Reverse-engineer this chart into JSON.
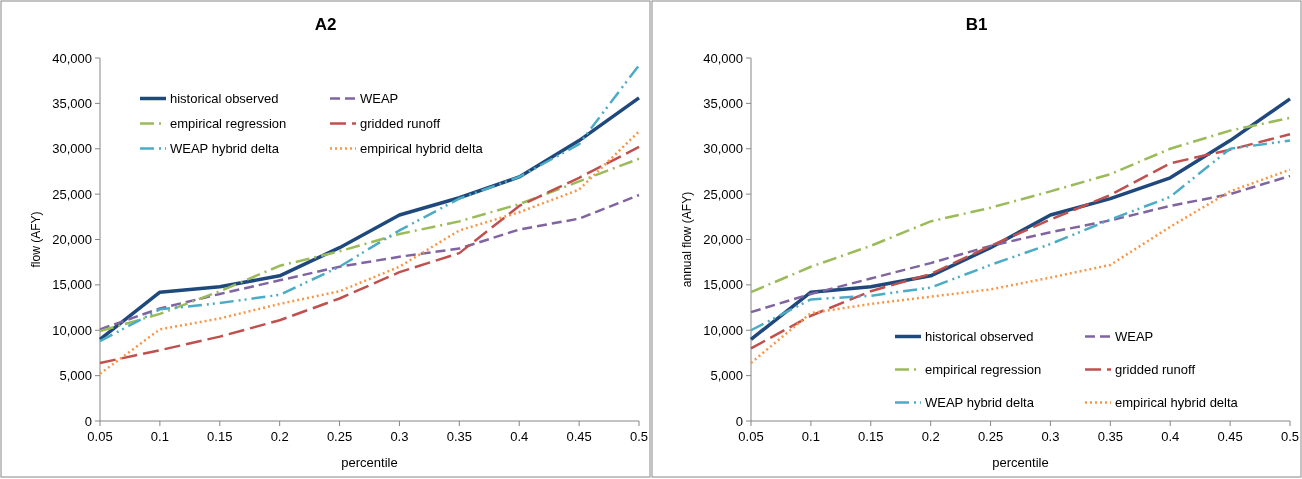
{
  "chart_data": [
    {
      "type": "line",
      "title": "A2",
      "xlabel": "percentile",
      "ylabel": "flow (AFY)",
      "x": [
        0.05,
        0.1,
        0.15,
        0.2,
        0.25,
        0.3,
        0.35,
        0.4,
        0.45,
        0.5
      ],
      "xlim": [
        0.05,
        0.5
      ],
      "xticks": [
        0.05,
        0.1,
        0.15,
        0.2,
        0.25,
        0.3,
        0.35,
        0.4,
        0.45,
        0.5
      ],
      "ylim": [
        0,
        40000
      ],
      "yticks": [
        0,
        {
          "value": 5000,
          "label": "5,000"
        },
        {
          "value": 10000,
          "label": "10,000"
        },
        {
          "value": 15000,
          "label": "15,000"
        },
        {
          "value": 20000,
          "label": "20,000"
        },
        {
          "value": 25000,
          "label": "25,000"
        },
        {
          "value": 30000,
          "label": "30,000"
        },
        {
          "value": 35000,
          "label": "35,000"
        },
        {
          "value": 40000,
          "label": "40,000"
        }
      ],
      "grid": false,
      "legend": "top left",
      "marker": "none",
      "series": [
        {
          "name": "historical observed",
          "color": "#1f497d",
          "line_style": "solid",
          "values": [
            9000,
            14200,
            14800,
            16000,
            19100,
            22700,
            24600,
            26900,
            30900,
            35600
          ]
        },
        {
          "name": "WEAP",
          "color": "#8064a2",
          "line_style": "dashed",
          "values": [
            10100,
            12400,
            14000,
            15500,
            17000,
            18100,
            19000,
            21100,
            22300,
            24900
          ]
        },
        {
          "name": "empirical regression",
          "color": "#9bbb59",
          "line_style": "dashed",
          "values": [
            9900,
            11800,
            14300,
            17100,
            18700,
            20600,
            22000,
            23900,
            26400,
            28900
          ]
        },
        {
          "name": "gridded runoff",
          "color": "#c0504d",
          "line_style": "dashed",
          "values": [
            6400,
            7800,
            9300,
            11100,
            13500,
            16400,
            18500,
            23700,
            26800,
            30200
          ]
        },
        {
          "name": "WEAP hybrid delta",
          "color": "#4bacc6",
          "line_style": "dashed",
          "values": [
            8800,
            12300,
            13000,
            13900,
            17000,
            21000,
            24500,
            26900,
            30500,
            39200
          ]
        },
        {
          "name": "empirical hybrid delta",
          "color": "#f79646",
          "line_style": "dotted",
          "values": [
            5200,
            10100,
            11300,
            12900,
            14300,
            17000,
            21000,
            23000,
            25500,
            31900
          ]
        }
      ]
    },
    {
      "type": "line",
      "title": "B1",
      "xlabel": "percentile",
      "ylabel": "annual flow (AFY)",
      "x": [
        0.05,
        0.1,
        0.15,
        0.2,
        0.25,
        0.3,
        0.35,
        0.4,
        0.45,
        0.5
      ],
      "xlim": [
        0.05,
        0.5
      ],
      "xticks": [
        0.05,
        0.1,
        0.15,
        0.2,
        0.25,
        0.3,
        0.35,
        0.4,
        0.45,
        0.5
      ],
      "ylim": [
        0,
        40000
      ],
      "yticks": [
        0,
        {
          "value": 5000,
          "label": "5,000"
        },
        {
          "value": 10000,
          "label": "10,000"
        },
        {
          "value": 15000,
          "label": "15,000"
        },
        {
          "value": 20000,
          "label": "20,000"
        },
        {
          "value": 25000,
          "label": "25,000"
        },
        {
          "value": 30000,
          "label": "30,000"
        },
        {
          "value": 35000,
          "label": "35,000"
        },
        {
          "value": 40000,
          "label": "40,000"
        }
      ],
      "grid": false,
      "legend": "bottom right",
      "marker": "none",
      "series": [
        {
          "name": "historical observed",
          "color": "#1f497d",
          "line_style": "solid",
          "values": [
            9000,
            14200,
            14800,
            16000,
            19100,
            22700,
            24500,
            26800,
            30900,
            35500
          ]
        },
        {
          "name": "WEAP",
          "color": "#8064a2",
          "line_style": "dashed",
          "values": [
            12000,
            14000,
            15700,
            17400,
            19300,
            20800,
            22100,
            23700,
            25000,
            27000
          ]
        },
        {
          "name": "empirical regression",
          "color": "#9bbb59",
          "line_style": "dashed",
          "values": [
            14200,
            17000,
            19300,
            22000,
            23500,
            25300,
            27200,
            30000,
            32000,
            33400
          ]
        },
        {
          "name": "gridded runoff",
          "color": "#c0504d",
          "line_style": "dashed",
          "values": [
            8000,
            11600,
            14300,
            16200,
            19300,
            22200,
            24900,
            28400,
            29900,
            31600
          ]
        },
        {
          "name": "WEAP hybrid delta",
          "color": "#4bacc6",
          "line_style": "dashed",
          "values": [
            10000,
            13400,
            13800,
            14700,
            17200,
            19500,
            22200,
            24700,
            30000,
            30900
          ]
        },
        {
          "name": "empirical hybrid delta",
          "color": "#f79646",
          "line_style": "dotted",
          "values": [
            6400,
            11900,
            12900,
            13700,
            14500,
            15800,
            17200,
            21400,
            25300,
            27700
          ]
        }
      ]
    }
  ]
}
